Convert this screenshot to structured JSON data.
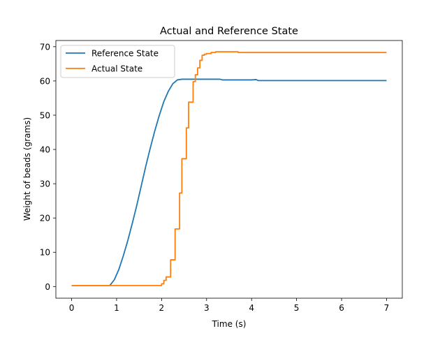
{
  "chart_data": {
    "type": "line",
    "title": "Actual and Reference State",
    "xlabel": "Time (s)",
    "ylabel": "Weight of beads (grams)",
    "xlim": [
      -0.35,
      7.35
    ],
    "ylim": [
      -3.4,
      71.8
    ],
    "xticks": [
      0,
      1,
      2,
      3,
      4,
      5,
      6,
      7
    ],
    "yticks": [
      0,
      10,
      20,
      30,
      40,
      50,
      60,
      70
    ],
    "grid": false,
    "legend_position": "upper-left",
    "series": [
      {
        "name": "Reference State",
        "color": "#1f77b4",
        "x": [
          0,
          0.85,
          0.95,
          1.05,
          1.15,
          1.25,
          1.35,
          1.45,
          1.55,
          1.65,
          1.75,
          1.85,
          1.95,
          2.05,
          2.15,
          2.25,
          2.35,
          2.45,
          2.5,
          3.0,
          3.3,
          3.35,
          4.0,
          4.1,
          4.15,
          7.0
        ],
        "y": [
          0.3,
          0.3,
          2.0,
          5.0,
          9.0,
          13.5,
          18.5,
          23.8,
          29.5,
          35.2,
          40.5,
          45.5,
          50.0,
          54.0,
          57.0,
          59.2,
          60.3,
          60.5,
          60.5,
          60.5,
          60.5,
          60.3,
          60.3,
          60.4,
          60.1,
          60.1
        ]
      },
      {
        "name": "Actual State",
        "color": "#ff7f0e",
        "x": [
          0,
          1.95,
          2.0,
          2.0,
          2.05,
          2.05,
          2.1,
          2.1,
          2.2,
          2.2,
          2.25,
          2.25,
          2.3,
          2.3,
          2.4,
          2.4,
          2.45,
          2.45,
          2.5,
          2.5,
          2.55,
          2.55,
          2.6,
          2.6,
          2.7,
          2.7,
          2.75,
          2.75,
          2.8,
          2.8,
          2.85,
          2.85,
          2.9,
          2.9,
          2.95,
          2.95,
          3.0,
          3.0,
          3.05,
          3.05,
          3.1,
          3.1,
          3.2,
          3.2,
          3.3,
          3.3,
          3.7,
          3.7,
          7.0
        ],
        "y": [
          0.3,
          0.3,
          0.3,
          0.8,
          0.8,
          1.8,
          1.8,
          2.8,
          2.8,
          7.8,
          7.8,
          7.8,
          7.8,
          16.8,
          16.8,
          27.3,
          27.3,
          37.3,
          37.3,
          37.3,
          37.3,
          46.3,
          46.3,
          53.8,
          53.8,
          59.8,
          59.8,
          61.8,
          61.8,
          63.8,
          63.8,
          66.0,
          66.0,
          67.5,
          67.5,
          67.8,
          67.8,
          68.0,
          68.0,
          68.0,
          68.0,
          68.3,
          68.3,
          68.5,
          68.5,
          68.5,
          68.5,
          68.3,
          68.3
        ]
      }
    ]
  }
}
